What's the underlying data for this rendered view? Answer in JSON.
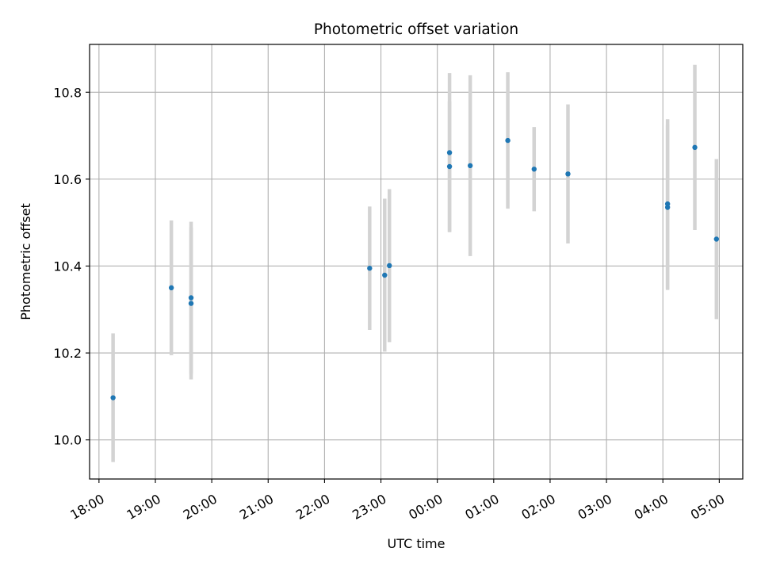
{
  "chart_data": {
    "type": "scatter",
    "title": "Photometric offset variation",
    "xlabel": "UTC time",
    "ylabel": "Photometric offset",
    "x_tick_labels": [
      "18:00",
      "19:00",
      "20:00",
      "21:00",
      "22:00",
      "23:00",
      "00:00",
      "01:00",
      "02:00",
      "03:00",
      "04:00",
      "05:00"
    ],
    "y_tick_labels": [
      "10.0",
      "10.2",
      "10.4",
      "10.6",
      "10.8"
    ],
    "y_ticks": [
      10.0,
      10.2,
      10.4,
      10.6,
      10.8
    ],
    "xlim": [
      "17:50",
      "05:25"
    ],
    "ylim": [
      9.91,
      10.91
    ],
    "grid": true,
    "point_color": "#1f77b4",
    "errorbar_color": "#d3d3d3",
    "points": [
      {
        "x": "18:15",
        "y": 10.097,
        "err": 0.148
      },
      {
        "x": "19:17",
        "y": 10.35,
        "err": 0.155
      },
      {
        "x": "19:38",
        "y": 10.327,
        "err": 0.175
      },
      {
        "x": "19:38",
        "y": 10.314,
        "err": 0.175
      },
      {
        "x": "22:48",
        "y": 10.395,
        "err": 0.142
      },
      {
        "x": "23:04",
        "y": 10.379,
        "err": 0.176
      },
      {
        "x": "23:09",
        "y": 10.401,
        "err": 0.176
      },
      {
        "x": "00:13",
        "y": 10.661,
        "err": 0.183
      },
      {
        "x": "00:13",
        "y": 10.629,
        "err": 0.15
      },
      {
        "x": "00:35",
        "y": 10.631,
        "err": 0.208
      },
      {
        "x": "01:15",
        "y": 10.689,
        "err": 0.157
      },
      {
        "x": "01:43",
        "y": 10.623,
        "err": 0.097
      },
      {
        "x": "02:19",
        "y": 10.612,
        "err": 0.16
      },
      {
        "x": "04:05",
        "y": 10.543,
        "err": 0.195
      },
      {
        "x": "04:05",
        "y": 10.535,
        "err": 0.19
      },
      {
        "x": "04:34",
        "y": 10.673,
        "err": 0.19
      },
      {
        "x": "04:57",
        "y": 10.462,
        "err": 0.184
      }
    ]
  }
}
